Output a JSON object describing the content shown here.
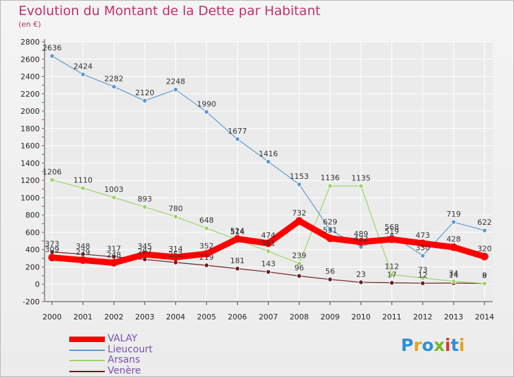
{
  "header": {
    "title": "Evolution du Montant de la Dette par Habitant",
    "subtitle": "(en €)"
  },
  "logo": {
    "text": "Proxiti",
    "colors": [
      "#2d8fd6",
      "#e8a31a",
      "#2d8fd6",
      "#77b52a",
      "#d93a2b",
      "#2d8fd6",
      "#e8a31a"
    ]
  },
  "colors": {
    "title": "#c0306a",
    "legend_text": "#7a4fb0",
    "grid": "#ffffff",
    "axis": "#444444"
  },
  "chart_data": {
    "type": "line",
    "title": "Evolution du Montant de la Dette par Habitant",
    "ylabel": "(en €)",
    "xlabel": "",
    "categories": [
      "2000",
      "2001",
      "2002",
      "2003",
      "2004",
      "2005",
      "2006",
      "2007",
      "2008",
      "2009",
      "2010",
      "2011",
      "2012",
      "2013",
      "2014"
    ],
    "ylim": [
      -200,
      2800
    ],
    "yticks": [
      -200,
      0,
      200,
      400,
      600,
      800,
      1000,
      1200,
      1400,
      1600,
      1800,
      2000,
      2200,
      2400,
      2600,
      2800
    ],
    "grid": true,
    "legend_position": "bottom-left",
    "series": [
      {
        "name": "Venère",
        "color": "#6b1e1e",
        "values": [
          373,
          348,
          317,
          287,
          252,
          219,
          181,
          143,
          96,
          56,
          23,
          17,
          12,
          14,
          8
        ]
      },
      {
        "name": "Arsans",
        "color": "#9ed46a",
        "values": [
          1206,
          1110,
          1003,
          893,
          780,
          648,
          514,
          381,
          239,
          1136,
          1135,
          112,
          73,
          34,
          9
        ]
      },
      {
        "name": "Lieucourt",
        "color": "#5b9bd5",
        "values": [
          2636,
          2424,
          2282,
          2120,
          2248,
          1990,
          1677,
          1416,
          1153,
          629,
          432,
          568,
          330,
          719,
          622
        ]
      },
      {
        "name": "VALAY",
        "color": "#ff0000",
        "values": [
          309,
          279,
          248,
          345,
          314,
          352,
          524,
          474,
          732,
          531,
          489,
          519,
          473,
          428,
          320
        ]
      }
    ],
    "legend_order": [
      "VALAY",
      "Lieucourt",
      "Arsans",
      "Venère"
    ]
  }
}
